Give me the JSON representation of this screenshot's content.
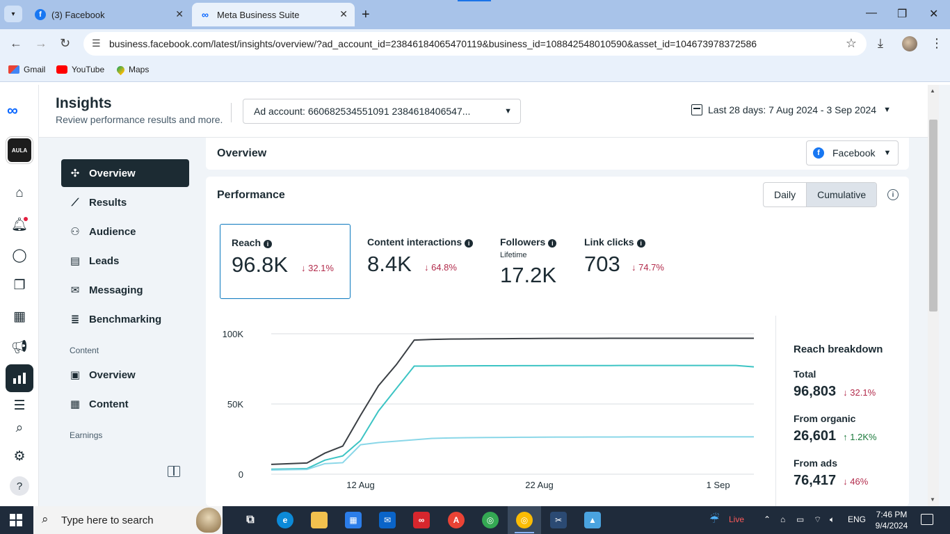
{
  "browser": {
    "tabs": [
      {
        "label": "(3) Facebook"
      },
      {
        "label": "Meta Business Suite"
      }
    ],
    "url": "business.facebook.com/latest/insights/overview/?ad_account_id=23846184065470119&business_id=108842548010590&asset_id=104673978372586",
    "bookmarks": [
      "Gmail",
      "YouTube",
      "Maps"
    ]
  },
  "header": {
    "title": "Insights",
    "subtitle": "Review performance results and more.",
    "ad_account": "Ad account: 660682534551091 2384618406547...",
    "date_range": "Last 28 days: 7 Aug 2024 - 3 Sep 2024"
  },
  "sidenav": {
    "items": [
      {
        "label": "Overview",
        "icon": "overview-icon"
      },
      {
        "label": "Results",
        "icon": "results-icon"
      },
      {
        "label": "Audience",
        "icon": "audience-icon"
      },
      {
        "label": "Leads",
        "icon": "leads-icon"
      },
      {
        "label": "Messaging",
        "icon": "messaging-icon"
      },
      {
        "label": "Benchmarking",
        "icon": "benchmarking-icon"
      }
    ],
    "content_section": "Content",
    "content_items": [
      {
        "label": "Overview",
        "icon": "content-overview-icon"
      },
      {
        "label": "Content",
        "icon": "content-table-icon"
      }
    ],
    "earnings_section": "Earnings"
  },
  "overview": {
    "title": "Overview",
    "platform": "Facebook"
  },
  "performance": {
    "title": "Performance",
    "toggle": [
      "Daily",
      "Cumulative"
    ],
    "metrics": [
      {
        "label": "Reach",
        "value": "96.8K",
        "change": "↓ 32.1%"
      },
      {
        "label": "Content interactions",
        "value": "8.4K",
        "change": "↓ 64.8%"
      },
      {
        "label": "Followers",
        "sub": "Lifetime",
        "value": "17.2K"
      },
      {
        "label": "Link clicks",
        "value": "703",
        "change": "↓ 74.7%"
      }
    ]
  },
  "chart_data": {
    "type": "line",
    "x": [
      "7 Aug",
      "8 Aug",
      "9 Aug",
      "10 Aug",
      "11 Aug",
      "12 Aug",
      "13 Aug",
      "14 Aug",
      "15 Aug",
      "16 Aug",
      "17 Aug",
      "18 Aug",
      "19 Aug",
      "20 Aug",
      "21 Aug",
      "22 Aug",
      "23 Aug",
      "24 Aug",
      "25 Aug",
      "26 Aug",
      "27 Aug",
      "28 Aug",
      "29 Aug",
      "30 Aug",
      "31 Aug",
      "1 Sep",
      "2 Sep",
      "3 Sep"
    ],
    "xticks": [
      "12 Aug",
      "22 Aug",
      "1 Sep"
    ],
    "yticks": [
      "0",
      "50K",
      "100K"
    ],
    "ylim": [
      0,
      100000
    ],
    "series": [
      {
        "color": "#3a3f44",
        "values": [
          7000,
          7500,
          8000,
          15000,
          20000,
          42000,
          63000,
          78000,
          95500,
          96000,
          96200,
          96300,
          96400,
          96500,
          96600,
          96650,
          96700,
          96720,
          96740,
          96760,
          96770,
          96780,
          96790,
          96795,
          96800,
          96802,
          96803,
          96803
        ]
      },
      {
        "color": "#3cc4c4",
        "values": [
          3500,
          3800,
          4000,
          10000,
          13000,
          24000,
          45000,
          61000,
          77000,
          77000,
          77100,
          77150,
          77200,
          77250,
          77300,
          77320,
          77340,
          77360,
          77370,
          77380,
          77390,
          77400,
          77405,
          77410,
          77412,
          77414,
          77416,
          76417
        ]
      },
      {
        "color": "#8ad7e8",
        "values": [
          3000,
          3200,
          3400,
          7500,
          8200,
          21000,
          22500,
          23500,
          24500,
          25500,
          25800,
          26000,
          26100,
          26200,
          26300,
          26350,
          26400,
          26450,
          26480,
          26500,
          26520,
          26540,
          26560,
          26570,
          26580,
          26590,
          26595,
          26601
        ]
      }
    ]
  },
  "breakdown": {
    "title": "Reach breakdown",
    "rows": [
      {
        "label": "Total",
        "value": "96,803",
        "change": "↓ 32.1%"
      },
      {
        "label": "From organic",
        "value": "26,601",
        "change": "↑ 1.2K%"
      },
      {
        "label": "From ads",
        "value": "76,417",
        "change": "↓ 46%"
      }
    ]
  },
  "taskbar": {
    "search_placeholder": "Type here to search",
    "weather": "Live",
    "language": "ENG",
    "time": "7:46 PM",
    "date": "9/4/2024"
  }
}
